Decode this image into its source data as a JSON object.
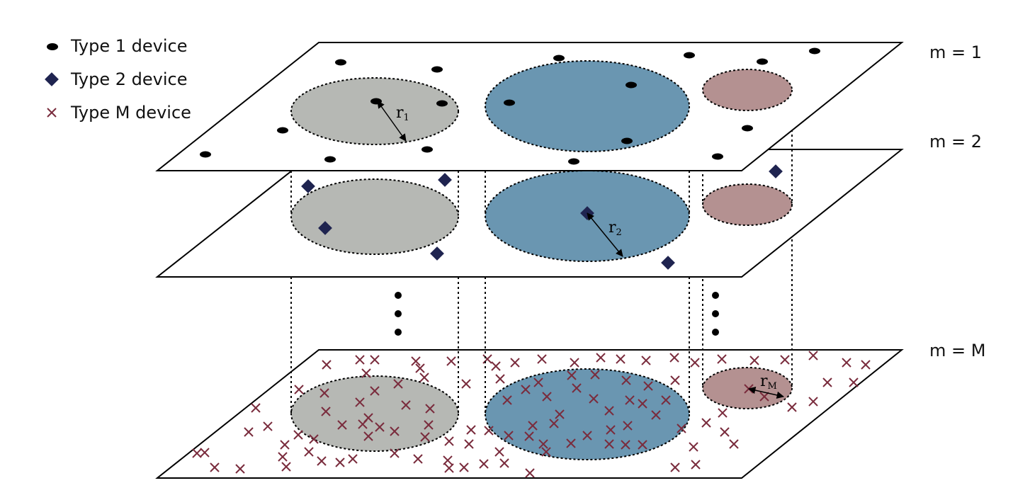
{
  "legend": {
    "items": [
      {
        "label": "Type 1 device",
        "icon": "ellipse-dot-icon",
        "color": "#000000"
      },
      {
        "label": "Type 2 device",
        "icon": "diamond-icon",
        "color": "#1f2450"
      },
      {
        "label": "Type M device",
        "icon": "cross-icon",
        "color": "#7a2c3d"
      }
    ]
  },
  "layers": [
    {
      "label": "m = 1"
    },
    {
      "label": "m = 2"
    },
    {
      "label": "m = M"
    }
  ],
  "radii": {
    "r1": {
      "base": "r",
      "sub": "1"
    },
    "r2": {
      "base": "r",
      "sub": "2"
    },
    "rM": {
      "base": "r",
      "sub": "M"
    }
  },
  "colors": {
    "gray_disc": "#b6b8b4",
    "blue_disc": "#6a96b1",
    "pink_disc": "#b49191",
    "type1": "#000000",
    "type2": "#1f2450",
    "typeM": "#7a2c3d"
  }
}
